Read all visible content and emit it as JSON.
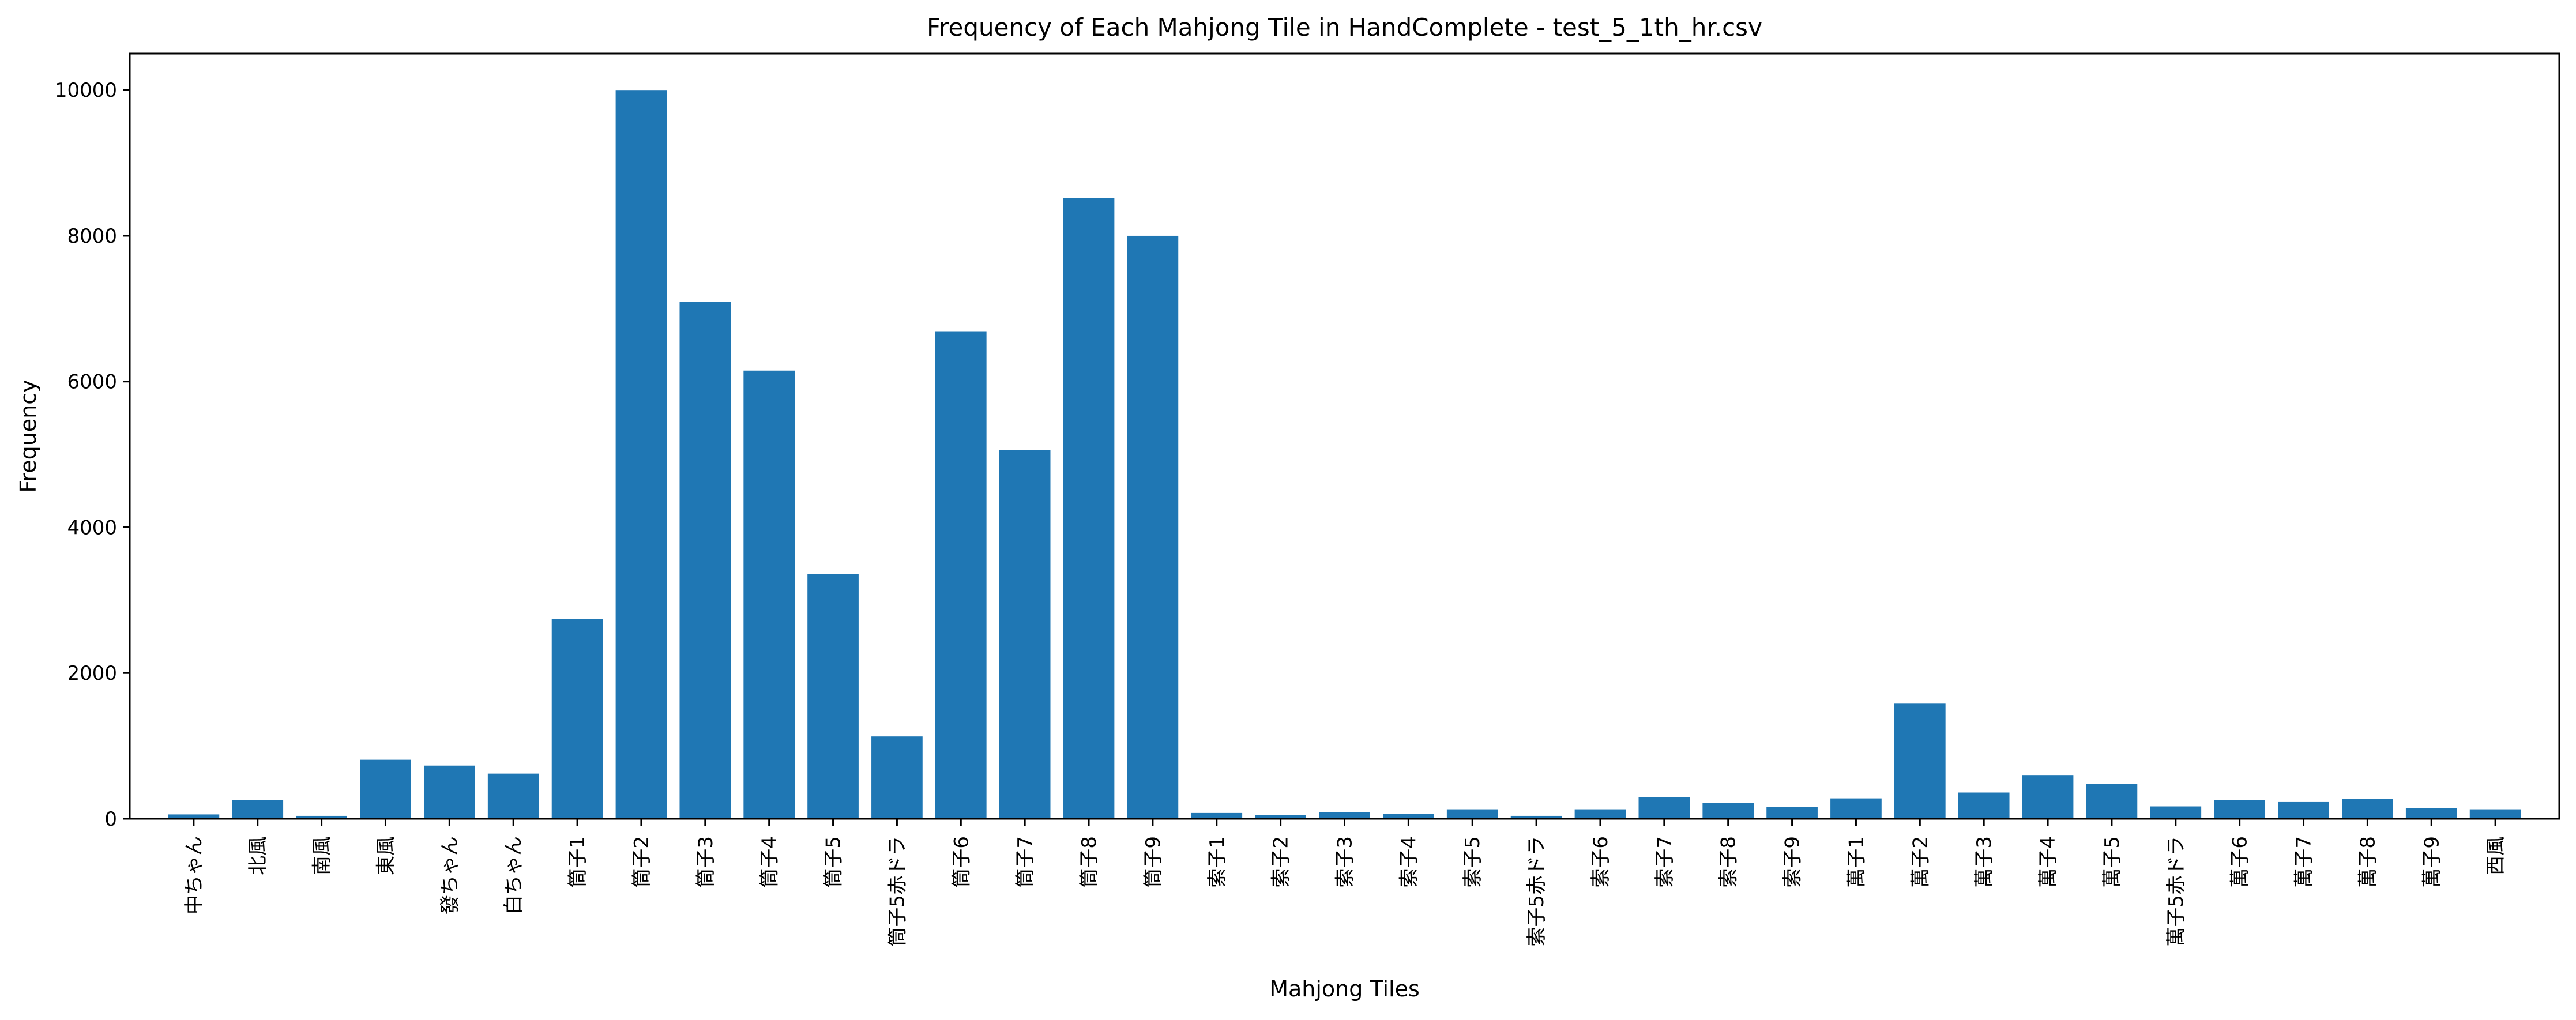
{
  "chart_data": {
    "type": "bar",
    "title": "Frequency of Each Mahjong Tile in HandComplete - test_5_1th_hr.csv",
    "xlabel": "Mahjong Tiles",
    "ylabel": "Frequency",
    "ylim": [
      0,
      10500
    ],
    "yticks": [
      0,
      2000,
      4000,
      6000,
      8000,
      10000
    ],
    "bar_color": "#1f77b4",
    "grid": false,
    "categories": [
      "中ちゃん",
      "北風",
      "南風",
      "東風",
      "發ちゃん",
      "白ちゃん",
      "筒子1",
      "筒子2",
      "筒子3",
      "筒子4",
      "筒子5",
      "筒子5赤ドラ",
      "筒子6",
      "筒子7",
      "筒子8",
      "筒子9",
      "索子1",
      "索子2",
      "索子3",
      "索子4",
      "索子5",
      "索子5赤ドラ",
      "索子6",
      "索子7",
      "索子8",
      "索子9",
      "萬子1",
      "萬子2",
      "萬子3",
      "萬子4",
      "萬子5",
      "萬子5赤ドラ",
      "萬子6",
      "萬子7",
      "萬子8",
      "萬子9",
      "西風"
    ],
    "values": [
      60,
      260,
      40,
      810,
      730,
      620,
      2740,
      10000,
      7090,
      6150,
      3360,
      1130,
      6690,
      5060,
      8520,
      8000,
      80,
      50,
      90,
      70,
      130,
      40,
      130,
      300,
      220,
      160,
      280,
      1580,
      360,
      600,
      480,
      170,
      260,
      230,
      270,
      150,
      130
    ]
  }
}
